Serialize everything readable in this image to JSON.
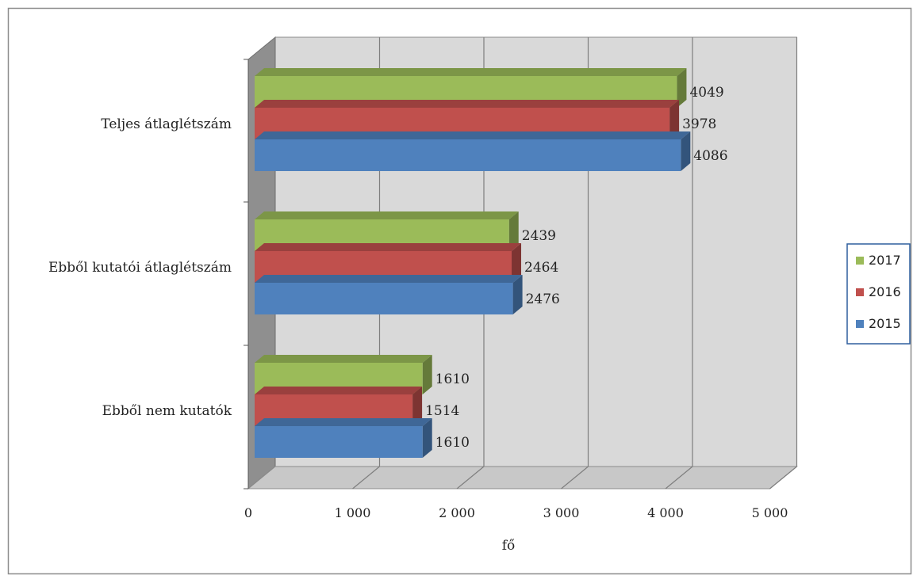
{
  "chart_data": {
    "type": "bar",
    "orientation": "horizontal",
    "three_d": true,
    "title": "",
    "xlabel": "fő",
    "ylabel": "",
    "xlim": [
      0,
      5000
    ],
    "x_ticks": [
      0,
      1000,
      2000,
      3000,
      4000,
      5000
    ],
    "x_tick_labels": [
      "0",
      "1 000",
      "2 000",
      "3 000",
      "4 000",
      "5 000"
    ],
    "grid": true,
    "legend_position": "right",
    "categories": [
      "Teljes átlaglétszám",
      "Ebből kutatói átlaglétszám",
      "Ebből nem kutatók"
    ],
    "series": [
      {
        "name": "2017",
        "values": [
          4049,
          2439,
          1610
        ],
        "color": "#9BBB59"
      },
      {
        "name": "2016",
        "values": [
          3978,
          2464,
          1514
        ],
        "color": "#C0504D"
      },
      {
        "name": "2015",
        "values": [
          4086,
          2476,
          1610
        ],
        "color": "#4F81BD"
      }
    ]
  }
}
